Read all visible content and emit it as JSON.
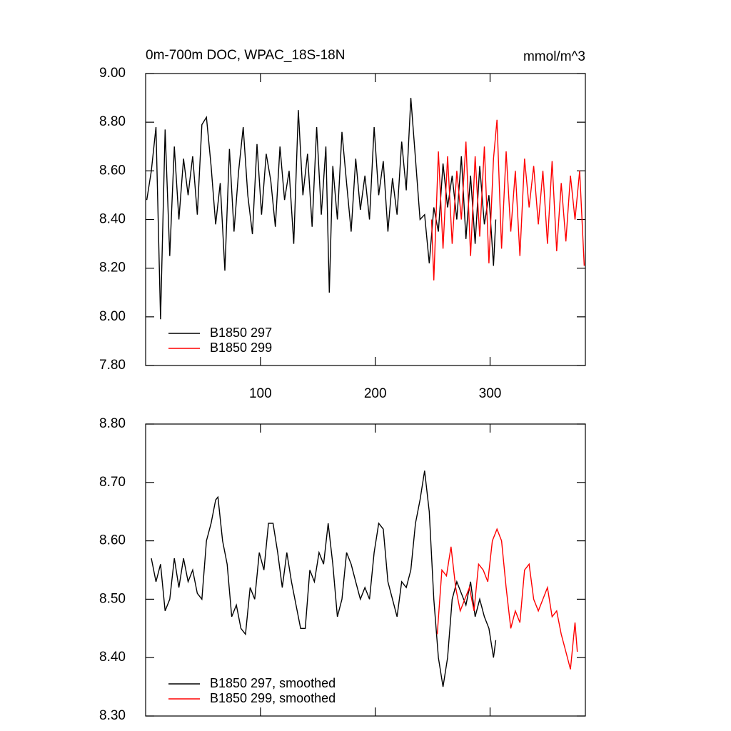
{
  "chart_data": [
    {
      "type": "line",
      "title": "0m-700m DOC, WPAC_18S-18N",
      "subtitle": "mmol/m^3",
      "xlim": [
        0,
        383
      ],
      "xticks": [
        100,
        200,
        300
      ],
      "ylim": [
        7.8,
        9.0
      ],
      "yticks": [
        {
          "value": 7.8,
          "label": "7.80"
        },
        {
          "value": 8.0,
          "label": "8.00"
        },
        {
          "value": 8.2,
          "label": "8.20"
        },
        {
          "value": 8.4,
          "label": "8.40"
        },
        {
          "value": 8.6,
          "label": "8.60"
        },
        {
          "value": 8.8,
          "label": "8.80"
        },
        {
          "value": 9.0,
          "label": "9.00"
        }
      ],
      "legend": "lower-left",
      "series": [
        {
          "name": "B1850 297",
          "color": "#000000",
          "x": [
            1,
            5,
            9,
            13,
            17,
            21,
            25,
            29,
            33,
            37,
            41,
            45,
            49,
            53,
            57,
            61,
            65,
            69,
            73,
            77,
            81,
            85,
            89,
            93,
            97,
            101,
            105,
            109,
            113,
            117,
            121,
            125,
            129,
            133,
            137,
            141,
            145,
            149,
            153,
            157,
            160,
            163,
            167,
            171,
            175,
            179,
            183,
            187,
            191,
            195,
            199,
            203,
            207,
            211,
            215,
            219,
            223,
            227,
            231,
            235,
            239,
            243,
            247,
            251,
            255,
            259,
            263,
            267,
            271,
            275,
            279,
            283,
            287,
            291,
            295,
            299,
            303,
            305
          ],
          "values": [
            8.48,
            8.6,
            8.78,
            7.99,
            8.77,
            8.25,
            8.7,
            8.4,
            8.65,
            8.5,
            8.66,
            8.42,
            8.79,
            8.82,
            8.62,
            8.38,
            8.55,
            8.19,
            8.69,
            8.35,
            8.6,
            8.78,
            8.5,
            8.34,
            8.71,
            8.42,
            8.67,
            8.56,
            8.37,
            8.7,
            8.48,
            8.6,
            8.3,
            8.85,
            8.5,
            8.67,
            8.37,
            8.78,
            8.42,
            8.7,
            8.1,
            8.62,
            8.4,
            8.76,
            8.55,
            8.35,
            8.65,
            8.44,
            8.58,
            8.4,
            8.78,
            8.5,
            8.64,
            8.35,
            8.57,
            8.42,
            8.72,
            8.52,
            8.9,
            8.65,
            8.4,
            8.42,
            8.22,
            8.45,
            8.35,
            8.63,
            8.45,
            8.58,
            8.4,
            8.66,
            8.32,
            8.58,
            8.3,
            8.62,
            8.38,
            8.5,
            8.21,
            8.4
          ]
        },
        {
          "name": "B1850 299",
          "color": "#ff0000",
          "x": [
            249,
            251,
            255,
            259,
            263,
            267,
            271,
            275,
            279,
            283,
            287,
            291,
            295,
            299,
            303,
            306,
            310,
            314,
            318,
            322,
            326,
            330,
            334,
            338,
            342,
            346,
            350,
            354,
            358,
            362,
            366,
            370,
            374,
            378,
            382
          ],
          "values": [
            8.4,
            8.15,
            8.68,
            8.28,
            8.66,
            8.3,
            8.6,
            8.4,
            8.72,
            8.25,
            8.66,
            8.33,
            8.7,
            8.22,
            8.65,
            8.81,
            8.28,
            8.68,
            8.35,
            8.6,
            8.25,
            8.65,
            8.45,
            8.62,
            8.38,
            8.6,
            8.3,
            8.64,
            8.27,
            8.55,
            8.31,
            8.58,
            8.4,
            8.6,
            8.21
          ]
        }
      ]
    },
    {
      "type": "line",
      "xlim": [
        0,
        383
      ],
      "xticks": [
        100,
        200,
        300
      ],
      "ylim": [
        8.3,
        8.8
      ],
      "yticks": [
        {
          "value": 8.3,
          "label": "8.30"
        },
        {
          "value": 8.4,
          "label": "8.40"
        },
        {
          "value": 8.5,
          "label": "8.50"
        },
        {
          "value": 8.6,
          "label": "8.60"
        },
        {
          "value": 8.7,
          "label": "8.70"
        },
        {
          "value": 8.8,
          "label": "8.80"
        }
      ],
      "legend": "lower-left",
      "series": [
        {
          "name": "B1850 297, smoothed",
          "color": "#000000",
          "x": [
            5,
            9,
            13,
            17,
            21,
            25,
            29,
            33,
            37,
            41,
            45,
            49,
            53,
            57,
            61,
            63,
            67,
            71,
            75,
            79,
            83,
            87,
            91,
            95,
            99,
            103,
            107,
            111,
            115,
            119,
            123,
            127,
            131,
            135,
            139,
            143,
            147,
            151,
            155,
            159,
            163,
            167,
            171,
            175,
            179,
            183,
            187,
            191,
            195,
            199,
            203,
            207,
            211,
            215,
            219,
            223,
            227,
            231,
            235,
            239,
            243,
            247,
            251,
            255,
            259,
            263,
            267,
            271,
            275,
            279,
            283,
            287,
            291,
            295,
            299,
            303,
            305
          ],
          "values": [
            8.57,
            8.53,
            8.56,
            8.48,
            8.5,
            8.57,
            8.52,
            8.57,
            8.53,
            8.55,
            8.51,
            8.5,
            8.6,
            8.63,
            8.67,
            8.675,
            8.6,
            8.56,
            8.47,
            8.49,
            8.45,
            8.44,
            8.52,
            8.5,
            8.58,
            8.55,
            8.63,
            8.63,
            8.58,
            8.52,
            8.58,
            8.53,
            8.49,
            8.45,
            8.45,
            8.55,
            8.53,
            8.58,
            8.56,
            8.63,
            8.56,
            8.47,
            8.5,
            8.58,
            8.56,
            8.53,
            8.5,
            8.52,
            8.5,
            8.58,
            8.63,
            8.62,
            8.53,
            8.5,
            8.47,
            8.53,
            8.52,
            8.55,
            8.63,
            8.67,
            8.72,
            8.65,
            8.5,
            8.4,
            8.35,
            8.4,
            8.5,
            8.53,
            8.51,
            8.49,
            8.53,
            8.47,
            8.5,
            8.47,
            8.45,
            8.4,
            8.43
          ]
        },
        {
          "name": "B1850 299, smoothed",
          "color": "#ff0000",
          "x": [
            254,
            258,
            262,
            266,
            270,
            274,
            278,
            282,
            286,
            290,
            294,
            298,
            302,
            306,
            310,
            314,
            318,
            322,
            326,
            330,
            334,
            338,
            342,
            346,
            350,
            354,
            358,
            362,
            366,
            370,
            374,
            376
          ],
          "values": [
            8.44,
            8.55,
            8.54,
            8.59,
            8.52,
            8.48,
            8.5,
            8.52,
            8.48,
            8.56,
            8.55,
            8.53,
            8.6,
            8.62,
            8.6,
            8.52,
            8.45,
            8.48,
            8.46,
            8.55,
            8.56,
            8.5,
            8.48,
            8.5,
            8.52,
            8.47,
            8.48,
            8.44,
            8.41,
            8.38,
            8.46,
            8.41
          ]
        }
      ]
    }
  ]
}
